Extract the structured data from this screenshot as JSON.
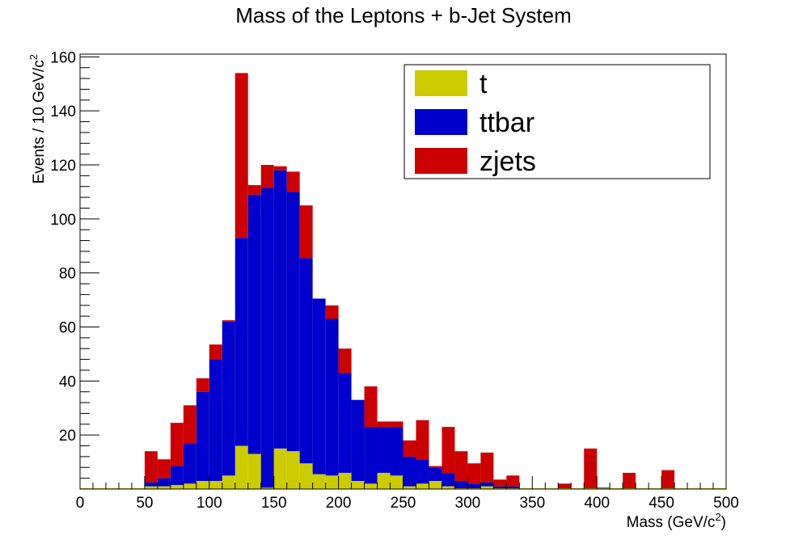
{
  "chart_data": {
    "type": "bar",
    "stacked": true,
    "title": "Mass of the Leptons + b-Jet System",
    "xlabel": "Mass (GeV/c",
    "xlabel_sup": "2",
    "xlabel_tail": ")",
    "ylabel": "Events / 10 GeV/c",
    "ylabel_sup": "2",
    "xlim": [
      0,
      500
    ],
    "ylim": [
      0,
      161
    ],
    "bin_width": 10,
    "x_ticks": [
      0,
      50,
      100,
      150,
      200,
      250,
      300,
      350,
      400,
      450,
      500
    ],
    "y_ticks": [
      20,
      40,
      60,
      80,
      100,
      120,
      140,
      160
    ],
    "bin_edges_start": [
      0,
      10,
      20,
      30,
      40,
      50,
      60,
      70,
      80,
      90,
      100,
      110,
      120,
      130,
      140,
      150,
      160,
      170,
      180,
      190,
      200,
      210,
      220,
      230,
      240,
      250,
      260,
      270,
      280,
      290,
      300,
      310,
      320,
      330,
      340,
      350,
      360,
      370,
      380,
      390,
      400,
      410,
      420,
      430,
      440,
      450,
      460,
      470,
      480,
      490
    ],
    "legend": {
      "position": "top-right"
    },
    "series": [
      {
        "name": "t",
        "color": "#cccc00",
        "values": [
          0,
          0,
          0,
          0,
          0,
          1,
          1,
          1.5,
          2,
          3,
          3,
          5,
          16,
          13,
          0.5,
          15,
          14,
          9.5,
          5.5,
          5,
          6,
          3,
          2,
          6,
          5,
          1,
          2,
          3,
          1,
          0,
          0,
          1,
          0,
          0,
          0,
          0,
          0,
          0,
          0,
          0,
          0,
          0,
          0,
          0,
          0,
          0,
          0,
          0,
          0,
          0
        ]
      },
      {
        "name": "ttbar",
        "color": "#0000cc",
        "values": [
          0,
          0,
          0,
          0,
          0,
          1.5,
          3,
          7,
          15,
          33,
          45,
          57,
          77,
          96,
          111,
          103,
          96,
          76,
          65,
          58,
          37,
          30,
          21,
          17,
          18,
          11,
          9,
          5,
          5,
          3,
          2,
          1.5,
          1,
          1,
          0,
          0,
          0,
          0,
          0,
          0,
          0.5,
          0,
          0,
          0,
          0,
          0,
          0,
          0,
          0,
          0
        ]
      },
      {
        "name": "zjets",
        "color": "#cc0000",
        "values": [
          0,
          0,
          0,
          0,
          0,
          11.5,
          7,
          16,
          14,
          5,
          5.5,
          0.5,
          61,
          3.5,
          8.5,
          1.5,
          7.5,
          19.5,
          0,
          5,
          9,
          0,
          15,
          2,
          2,
          6,
          14.5,
          0.5,
          17,
          11,
          7.5,
          11,
          2.5,
          4,
          0,
          0,
          0,
          2,
          0,
          15,
          0,
          0,
          6,
          0,
          0,
          7,
          0,
          0,
          0,
          0
        ]
      }
    ]
  }
}
